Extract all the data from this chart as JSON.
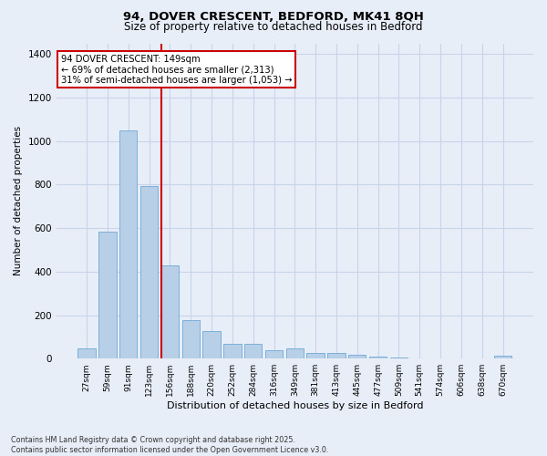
{
  "title": "94, DOVER CRESCENT, BEDFORD, MK41 8QH",
  "subtitle": "Size of property relative to detached houses in Bedford",
  "xlabel": "Distribution of detached houses by size in Bedford",
  "ylabel": "Number of detached properties",
  "categories": [
    "27sqm",
    "59sqm",
    "91sqm",
    "123sqm",
    "156sqm",
    "188sqm",
    "220sqm",
    "252sqm",
    "284sqm",
    "316sqm",
    "349sqm",
    "381sqm",
    "413sqm",
    "445sqm",
    "477sqm",
    "509sqm",
    "541sqm",
    "574sqm",
    "606sqm",
    "638sqm",
    "670sqm"
  ],
  "values": [
    47,
    585,
    1048,
    795,
    430,
    178,
    128,
    68,
    68,
    40,
    45,
    27,
    25,
    18,
    10,
    3,
    0,
    0,
    0,
    0,
    12
  ],
  "bar_color": "#b8cfe8",
  "bar_edge_color": "#6fa8d6",
  "property_line_x": 4,
  "property_line_color": "#cc0000",
  "annotation_text": "94 DOVER CRESCENT: 149sqm\n← 69% of detached houses are smaller (2,313)\n31% of semi-detached houses are larger (1,053) →",
  "annotation_box_color": "#cc0000",
  "annotation_bg": "#ffffff",
  "ylim": [
    0,
    1450
  ],
  "yticks": [
    0,
    200,
    400,
    600,
    800,
    1000,
    1200,
    1400
  ],
  "grid_color": "#c8d4e8",
  "bg_color": "#e8eef8",
  "footnote": "Contains HM Land Registry data © Crown copyright and database right 2025.\nContains public sector information licensed under the Open Government Licence v3.0."
}
